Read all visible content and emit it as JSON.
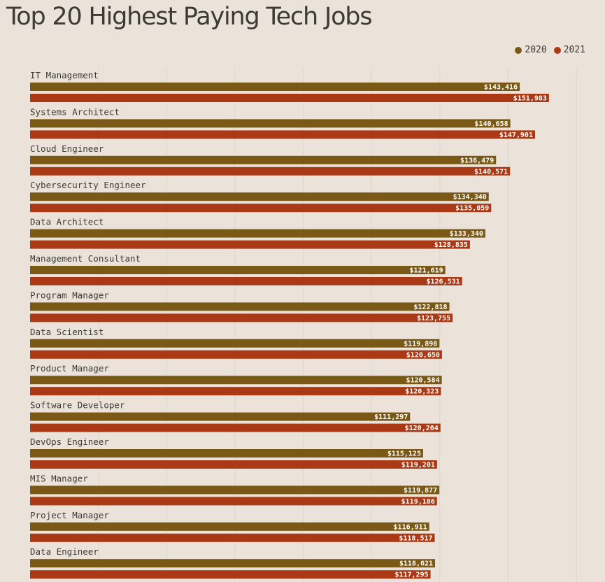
{
  "title": "Top 20 Highest Paying Tech Jobs",
  "colors": {
    "background": "#ebe3d9",
    "2020": "#7a5917",
    "2021": "#a93a15",
    "gridline": "#d9d7cc"
  },
  "chart_data": {
    "type": "bar",
    "orientation": "horizontal",
    "title": "Top 20 Highest Paying Tech Jobs",
    "legend_position": "top-right",
    "grid": true,
    "xlim": [
      0,
      180000
    ],
    "categories": [
      "IT Management",
      "Systems Architect",
      "Cloud Engineer",
      "Cybersecurity Engineer",
      "Data Architect",
      "Management Consultant",
      "Program Manager",
      "Data Scientist",
      "Product Manager",
      "Software Developer",
      "DevOps Engineer",
      "MIS Manager",
      "Project Manager",
      "Data Engineer"
    ],
    "series": [
      {
        "name": "2020",
        "color": "#7a5917",
        "values": [
          143416,
          140658,
          136479,
          134340,
          133340,
          121619,
          122818,
          119898,
          120584,
          111297,
          115125,
          119877,
          116911,
          118621
        ],
        "labels": [
          "$143,416",
          "$140,658",
          "$136,479",
          "$134,340",
          "$133,340",
          "$121,619",
          "$122,818",
          "$119,898",
          "$120,584",
          "$111,297",
          "$115,125",
          "$119,877",
          "$116,911",
          "$118,621"
        ]
      },
      {
        "name": "2021",
        "color": "#a93a15",
        "values": [
          151983,
          147901,
          140571,
          135059,
          128835,
          126531,
          123755,
          120650,
          120323,
          120204,
          119201,
          119186,
          118517,
          117295
        ],
        "labels": [
          "$151,983",
          "$147,901",
          "$140,571",
          "$135,059",
          "$128,835",
          "$126,531",
          "$123,755",
          "$120,650",
          "$120,323",
          "$120,204",
          "$119,201",
          "$119,186",
          "$118,517",
          "$117,295"
        ]
      }
    ]
  }
}
